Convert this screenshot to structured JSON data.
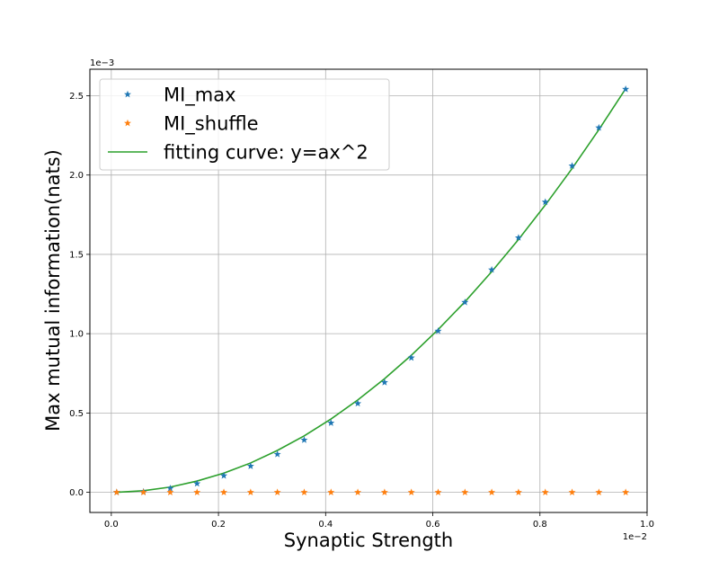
{
  "chart_data": {
    "type": "scatter",
    "title": "",
    "xlabel": "Synaptic Strength",
    "ylabel": "Max mutual information(nats)",
    "x_offset_text": "1e−2",
    "y_offset_text": "1e−3",
    "xlim": [
      -0.0004,
      0.01
    ],
    "ylim": [
      -0.000127,
      0.002667
    ],
    "x_ticks": [
      0.0,
      0.002,
      0.004,
      0.006,
      0.008,
      0.01
    ],
    "x_tick_labels": [
      "0.0",
      "0.2",
      "0.4",
      "0.6",
      "0.8",
      "1.0"
    ],
    "y_ticks": [
      0.0,
      0.0005,
      0.001,
      0.0015,
      0.002,
      0.0025
    ],
    "y_tick_labels": [
      "0.0",
      "0.5",
      "1.0",
      "1.5",
      "2.0",
      "2.5"
    ],
    "grid": true,
    "legend_position": "top-left",
    "x": [
      0.0001,
      0.0006,
      0.0011,
      0.0016,
      0.0021,
      0.0026,
      0.0031,
      0.0036,
      0.0041,
      0.0046,
      0.0051,
      0.0056,
      0.0061,
      0.0066,
      0.0071,
      0.0076,
      0.0081,
      0.0086,
      0.0091,
      0.0096
    ],
    "series": [
      {
        "name": "MI_max",
        "kind": "marker",
        "marker": "star",
        "color": "#1f77b4",
        "values": [
          0.0,
          4e-06,
          2.5e-05,
          5.5e-05,
          0.000105,
          0.000165,
          0.00024,
          0.00033,
          0.000437,
          0.00056,
          0.000693,
          0.000848,
          0.001017,
          0.001198,
          0.001403,
          0.001605,
          0.00183,
          0.002058,
          0.002298,
          0.002541
        ]
      },
      {
        "name": "MI_shuffle",
        "kind": "marker",
        "marker": "star",
        "color": "#ff7f0e",
        "values": [
          0.0,
          0.0,
          0.0,
          0.0,
          0.0,
          0.0,
          0.0,
          0.0,
          0.0,
          0.0,
          0.0,
          0.0,
          0.0,
          0.0,
          0.0,
          0.0,
          0.0,
          0.0,
          0.0,
          0.0
        ]
      },
      {
        "name": "fitting curve: y=ax^2",
        "kind": "line",
        "color": "#2ca02c",
        "values": [
          0.0,
          1e-05,
          3.3e-05,
          7.1e-05,
          0.000121,
          0.000185,
          0.000264,
          0.000356,
          0.000462,
          0.000582,
          0.000716,
          0.000864,
          0.001026,
          0.001201,
          0.001391,
          0.001594,
          0.001811,
          0.002041,
          0.002286,
          0.002544
        ]
      }
    ]
  }
}
